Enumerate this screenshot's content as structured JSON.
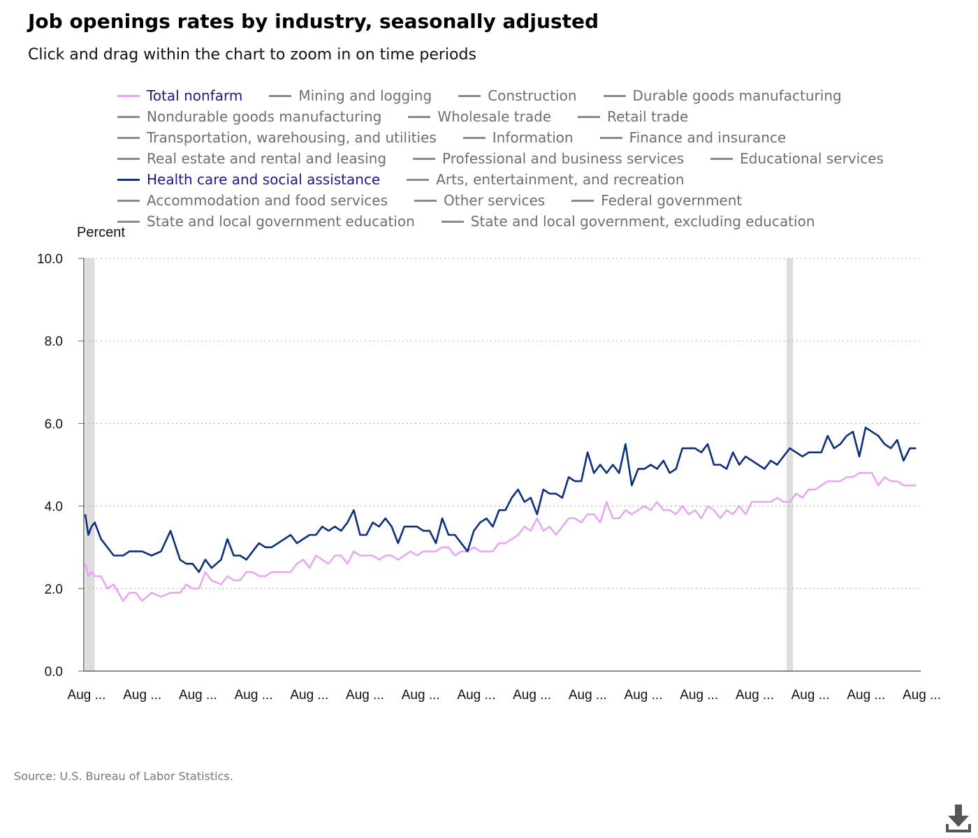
{
  "title": "Job openings rates by industry, seasonally adjusted",
  "subtitle": "Click and drag within the chart to zoom in on time periods",
  "source": "Source: U.S. Bureau of Labor Statistics.",
  "download_icon": "download-icon",
  "colors": {
    "total_nonfarm": "#e9a4f5",
    "health_care": "#0b2f7a",
    "inactive": "#8a8a8a",
    "recession": "#dddddd"
  },
  "legend": [
    [
      {
        "label": "Total nonfarm",
        "active": true,
        "color": "#e9a4f5"
      },
      {
        "label": "Mining and logging"
      },
      {
        "label": "Construction"
      },
      {
        "label": "Durable goods manufacturing"
      }
    ],
    [
      {
        "label": "Nondurable goods manufacturing"
      },
      {
        "label": "Wholesale trade"
      },
      {
        "label": "Retail trade"
      }
    ],
    [
      {
        "label": "Transportation, warehousing, and utilities"
      },
      {
        "label": "Information"
      },
      {
        "label": "Finance and insurance"
      }
    ],
    [
      {
        "label": "Real estate and rental and leasing"
      },
      {
        "label": "Professional and business services"
      },
      {
        "label": "Educational services"
      }
    ],
    [
      {
        "label": "Health care and social assistance",
        "active": true,
        "color": "#0b2f7a"
      },
      {
        "label": "Arts, entertainment, and recreation"
      }
    ],
    [
      {
        "label": "Accommodation and food services"
      },
      {
        "label": "Other services"
      },
      {
        "label": "Federal government"
      }
    ],
    [
      {
        "label": "State and local government education"
      },
      {
        "label": "State and local government, excluding education"
      }
    ]
  ],
  "chart_data": {
    "type": "line",
    "ylabel": "Percent",
    "ylim": [
      0,
      10
    ],
    "yticks": [
      "0.0",
      "2.0",
      "4.0",
      "6.0",
      "8.0",
      "10.0"
    ],
    "xlim": [
      "2001-08",
      "2023-08"
    ],
    "xtick_labels": [
      "Aug ...",
      "Aug ...",
      "Aug ...",
      "Aug ...",
      "Aug ...",
      "Aug ...",
      "Aug ...",
      "Aug ...",
      "Aug ...",
      "Aug ...",
      "Aug ...",
      "Aug ...",
      "Aug ...",
      "Aug ...",
      "Aug ...",
      "Aug ..."
    ],
    "grid": "horizontal-dotted",
    "recessions": [
      [
        "2001-08",
        "2001-11"
      ],
      [
        "2020-02",
        "2020-04"
      ]
    ],
    "series": [
      {
        "name": "Total nonfarm",
        "color": "#e9a4f5",
        "points": [
          [
            "2001-08",
            2.6
          ],
          [
            "2001-09",
            2.3
          ],
          [
            "2001-10",
            2.4
          ],
          [
            "2001-11",
            2.3
          ],
          [
            "2002-01",
            2.3
          ],
          [
            "2002-03",
            2.0
          ],
          [
            "2002-05",
            2.1
          ],
          [
            "2002-08",
            1.7
          ],
          [
            "2002-10",
            1.9
          ],
          [
            "2002-12",
            1.9
          ],
          [
            "2003-02",
            1.7
          ],
          [
            "2003-05",
            1.9
          ],
          [
            "2003-08",
            1.8
          ],
          [
            "2003-11",
            1.9
          ],
          [
            "2004-02",
            1.9
          ],
          [
            "2004-04",
            2.1
          ],
          [
            "2004-06",
            2.0
          ],
          [
            "2004-08",
            2.0
          ],
          [
            "2004-10",
            2.4
          ],
          [
            "2004-12",
            2.2
          ],
          [
            "2005-03",
            2.1
          ],
          [
            "2005-05",
            2.3
          ],
          [
            "2005-07",
            2.2
          ],
          [
            "2005-09",
            2.2
          ],
          [
            "2005-11",
            2.4
          ],
          [
            "2006-01",
            2.4
          ],
          [
            "2006-03",
            2.3
          ],
          [
            "2006-05",
            2.3
          ],
          [
            "2006-07",
            2.4
          ],
          [
            "2006-09",
            2.4
          ],
          [
            "2006-11",
            2.4
          ],
          [
            "2007-01",
            2.4
          ],
          [
            "2007-03",
            2.6
          ],
          [
            "2007-05",
            2.7
          ],
          [
            "2007-07",
            2.5
          ],
          [
            "2007-09",
            2.8
          ],
          [
            "2007-11",
            2.7
          ],
          [
            "2008-01",
            2.6
          ],
          [
            "2008-03",
            2.8
          ],
          [
            "2008-05",
            2.8
          ],
          [
            "2008-07",
            2.6
          ],
          [
            "2008-09",
            2.9
          ],
          [
            "2008-11",
            2.8
          ],
          [
            "2009-01",
            2.8
          ],
          [
            "2009-03",
            2.8
          ],
          [
            "2009-05",
            2.7
          ],
          [
            "2009-07",
            2.8
          ],
          [
            "2009-09",
            2.8
          ],
          [
            "2009-11",
            2.7
          ],
          [
            "2010-01",
            2.8
          ],
          [
            "2010-03",
            2.9
          ],
          [
            "2010-05",
            2.8
          ],
          [
            "2010-07",
            2.9
          ],
          [
            "2010-09",
            2.9
          ],
          [
            "2010-11",
            2.9
          ],
          [
            "2011-01",
            3.0
          ],
          [
            "2011-03",
            3.0
          ],
          [
            "2011-05",
            2.8
          ],
          [
            "2011-07",
            2.9
          ],
          [
            "2011-09",
            2.9
          ],
          [
            "2011-11",
            3.0
          ],
          [
            "2012-01",
            2.9
          ],
          [
            "2012-03",
            2.9
          ],
          [
            "2012-05",
            2.9
          ],
          [
            "2012-07",
            3.1
          ],
          [
            "2012-09",
            3.1
          ],
          [
            "2012-11",
            3.2
          ],
          [
            "2013-01",
            3.3
          ],
          [
            "2013-03",
            3.5
          ],
          [
            "2013-05",
            3.4
          ],
          [
            "2013-07",
            3.7
          ],
          [
            "2013-09",
            3.4
          ],
          [
            "2013-11",
            3.5
          ],
          [
            "2014-01",
            3.3
          ],
          [
            "2014-03",
            3.5
          ],
          [
            "2014-05",
            3.7
          ],
          [
            "2014-07",
            3.7
          ],
          [
            "2014-09",
            3.6
          ],
          [
            "2014-11",
            3.8
          ],
          [
            "2015-01",
            3.8
          ],
          [
            "2015-03",
            3.6
          ],
          [
            "2015-05",
            4.1
          ],
          [
            "2015-07",
            3.7
          ],
          [
            "2015-09",
            3.7
          ],
          [
            "2015-11",
            3.9
          ],
          [
            "2016-01",
            3.8
          ],
          [
            "2016-03",
            3.9
          ],
          [
            "2016-05",
            4.0
          ],
          [
            "2016-07",
            3.9
          ],
          [
            "2016-09",
            4.1
          ],
          [
            "2016-11",
            3.9
          ],
          [
            "2017-01",
            3.9
          ],
          [
            "2017-03",
            3.8
          ],
          [
            "2017-05",
            4.0
          ],
          [
            "2017-07",
            3.8
          ],
          [
            "2017-09",
            3.9
          ],
          [
            "2017-11",
            3.7
          ],
          [
            "2018-01",
            4.0
          ],
          [
            "2018-03",
            3.9
          ],
          [
            "2018-05",
            3.7
          ],
          [
            "2018-07",
            3.9
          ],
          [
            "2018-09",
            3.8
          ],
          [
            "2018-11",
            4.0
          ],
          [
            "2019-01",
            3.8
          ],
          [
            "2019-03",
            4.1
          ],
          [
            "2019-05",
            4.1
          ],
          [
            "2019-07",
            4.1
          ],
          [
            "2019-09",
            4.1
          ],
          [
            "2019-11",
            4.2
          ],
          [
            "2020-01",
            4.1
          ],
          [
            "2020-03",
            4.1
          ],
          [
            "2020-05",
            4.3
          ],
          [
            "2020-07",
            4.2
          ],
          [
            "2020-09",
            4.4
          ],
          [
            "2020-11",
            4.4
          ],
          [
            "2021-01",
            4.5
          ],
          [
            "2021-03",
            4.6
          ],
          [
            "2021-05",
            4.6
          ],
          [
            "2021-07",
            4.6
          ],
          [
            "2021-09",
            4.7
          ],
          [
            "2021-11",
            4.7
          ],
          [
            "2022-01",
            4.8
          ],
          [
            "2022-03",
            4.8
          ],
          [
            "2022-05",
            4.8
          ],
          [
            "2022-07",
            4.5
          ],
          [
            "2022-09",
            4.7
          ],
          [
            "2022-11",
            4.6
          ],
          [
            "2023-01",
            4.6
          ],
          [
            "2023-03",
            4.5
          ],
          [
            "2023-05",
            4.5
          ],
          [
            "2023-07",
            4.5
          ]
        ]
      },
      {
        "name": "Health care and social assistance",
        "color": "#0b2f7a",
        "points": [
          [
            "2001-08",
            3.8
          ],
          [
            "2001-09",
            3.3
          ],
          [
            "2001-10",
            3.5
          ],
          [
            "2001-11",
            3.6
          ],
          [
            "2002-01",
            3.2
          ],
          [
            "2002-03",
            3.0
          ],
          [
            "2002-05",
            2.8
          ],
          [
            "2002-08",
            2.8
          ],
          [
            "2002-10",
            2.9
          ],
          [
            "2002-12",
            2.9
          ],
          [
            "2003-02",
            2.9
          ],
          [
            "2003-05",
            2.8
          ],
          [
            "2003-08",
            2.9
          ],
          [
            "2003-11",
            3.4
          ],
          [
            "2004-02",
            2.7
          ],
          [
            "2004-04",
            2.6
          ],
          [
            "2004-06",
            2.6
          ],
          [
            "2004-08",
            2.4
          ],
          [
            "2004-10",
            2.7
          ],
          [
            "2004-12",
            2.5
          ],
          [
            "2005-03",
            2.7
          ],
          [
            "2005-05",
            3.2
          ],
          [
            "2005-07",
            2.8
          ],
          [
            "2005-09",
            2.8
          ],
          [
            "2005-11",
            2.7
          ],
          [
            "2006-01",
            2.9
          ],
          [
            "2006-03",
            3.1
          ],
          [
            "2006-05",
            3.0
          ],
          [
            "2006-07",
            3.0
          ],
          [
            "2006-09",
            3.1
          ],
          [
            "2006-11",
            3.2
          ],
          [
            "2007-01",
            3.3
          ],
          [
            "2007-03",
            3.1
          ],
          [
            "2007-05",
            3.2
          ],
          [
            "2007-07",
            3.3
          ],
          [
            "2007-09",
            3.3
          ],
          [
            "2007-11",
            3.5
          ],
          [
            "2008-01",
            3.4
          ],
          [
            "2008-03",
            3.5
          ],
          [
            "2008-05",
            3.4
          ],
          [
            "2008-07",
            3.6
          ],
          [
            "2008-09",
            3.9
          ],
          [
            "2008-11",
            3.3
          ],
          [
            "2009-01",
            3.3
          ],
          [
            "2009-03",
            3.6
          ],
          [
            "2009-05",
            3.5
          ],
          [
            "2009-07",
            3.7
          ],
          [
            "2009-09",
            3.5
          ],
          [
            "2009-11",
            3.1
          ],
          [
            "2010-01",
            3.5
          ],
          [
            "2010-03",
            3.5
          ],
          [
            "2010-05",
            3.5
          ],
          [
            "2010-07",
            3.4
          ],
          [
            "2010-09",
            3.4
          ],
          [
            "2010-11",
            3.1
          ],
          [
            "2011-01",
            3.7
          ],
          [
            "2011-03",
            3.3
          ],
          [
            "2011-05",
            3.3
          ],
          [
            "2011-07",
            3.1
          ],
          [
            "2011-09",
            2.9
          ],
          [
            "2011-11",
            3.4
          ],
          [
            "2012-01",
            3.6
          ],
          [
            "2012-03",
            3.7
          ],
          [
            "2012-05",
            3.5
          ],
          [
            "2012-07",
            3.9
          ],
          [
            "2012-09",
            3.9
          ],
          [
            "2012-11",
            4.2
          ],
          [
            "2013-01",
            4.4
          ],
          [
            "2013-03",
            4.1
          ],
          [
            "2013-05",
            4.2
          ],
          [
            "2013-07",
            3.8
          ],
          [
            "2013-09",
            4.4
          ],
          [
            "2013-11",
            4.3
          ],
          [
            "2014-01",
            4.3
          ],
          [
            "2014-03",
            4.2
          ],
          [
            "2014-05",
            4.7
          ],
          [
            "2014-07",
            4.6
          ],
          [
            "2014-09",
            4.6
          ],
          [
            "2014-11",
            5.3
          ],
          [
            "2015-01",
            4.8
          ],
          [
            "2015-03",
            5.0
          ],
          [
            "2015-05",
            4.8
          ],
          [
            "2015-07",
            5.0
          ],
          [
            "2015-09",
            4.8
          ],
          [
            "2015-11",
            5.5
          ],
          [
            "2016-01",
            4.5
          ],
          [
            "2016-03",
            4.9
          ],
          [
            "2016-05",
            4.9
          ],
          [
            "2016-07",
            5.0
          ],
          [
            "2016-09",
            4.9
          ],
          [
            "2016-11",
            5.1
          ],
          [
            "2017-01",
            4.8
          ],
          [
            "2017-03",
            4.9
          ],
          [
            "2017-05",
            5.4
          ],
          [
            "2017-07",
            5.4
          ],
          [
            "2017-09",
            5.4
          ],
          [
            "2017-11",
            5.3
          ],
          [
            "2018-01",
            5.5
          ],
          [
            "2018-03",
            5.0
          ],
          [
            "2018-05",
            5.0
          ],
          [
            "2018-07",
            4.9
          ],
          [
            "2018-09",
            5.3
          ],
          [
            "2018-11",
            5.0
          ],
          [
            "2019-01",
            5.2
          ],
          [
            "2019-03",
            5.1
          ],
          [
            "2019-05",
            5.0
          ],
          [
            "2019-07",
            4.9
          ],
          [
            "2019-09",
            5.1
          ],
          [
            "2019-11",
            5.0
          ],
          [
            "2020-01",
            5.2
          ],
          [
            "2020-03",
            5.4
          ],
          [
            "2020-05",
            5.3
          ],
          [
            "2020-07",
            5.2
          ],
          [
            "2020-09",
            5.3
          ],
          [
            "2020-11",
            5.3
          ],
          [
            "2021-01",
            5.3
          ],
          [
            "2021-03",
            5.7
          ],
          [
            "2021-05",
            5.4
          ],
          [
            "2021-07",
            5.5
          ],
          [
            "2021-09",
            5.7
          ],
          [
            "2021-11",
            5.8
          ],
          [
            "2022-01",
            5.2
          ],
          [
            "2022-03",
            5.9
          ],
          [
            "2022-05",
            5.8
          ],
          [
            "2022-07",
            5.7
          ],
          [
            "2022-09",
            5.5
          ],
          [
            "2022-11",
            5.4
          ],
          [
            "2023-01",
            5.6
          ],
          [
            "2023-03",
            5.1
          ],
          [
            "2023-05",
            5.4
          ],
          [
            "2023-07",
            5.4
          ]
        ]
      }
    ]
  }
}
